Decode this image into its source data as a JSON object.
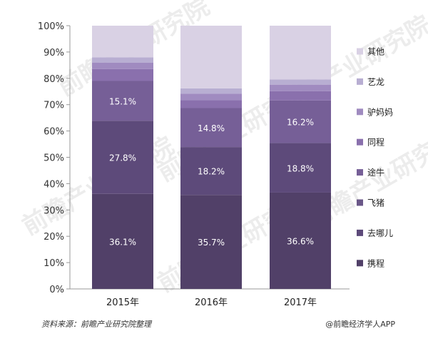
{
  "chart_data": {
    "type": "bar",
    "stacked": true,
    "categories": [
      "2015年",
      "2016年",
      "2017年"
    ],
    "y_ticks": [
      "0%",
      "10%",
      "20%",
      "30%",
      "40%",
      "50%",
      "60%",
      "70%",
      "80%",
      "90%",
      "100%"
    ],
    "ylim": [
      0,
      100
    ],
    "legend_position": "right",
    "grid": false,
    "series": [
      {
        "name": "携程",
        "color": "#514068",
        "values": [
          36.1,
          35.7,
          36.6
        ],
        "labels": [
          "36.1%",
          "35.7%",
          "36.6%"
        ]
      },
      {
        "name": "去哪儿",
        "color": "#5d4a7a",
        "values": [
          27.8,
          18.2,
          18.8
        ],
        "labels": [
          "27.8%",
          "18.2%",
          "18.8%"
        ]
      },
      {
        "name": "飞猪",
        "color": "#6a5788",
        "values": [
          0,
          0,
          0
        ],
        "labels": [
          "",
          "",
          ""
        ]
      },
      {
        "name": "途牛",
        "color": "#765f97",
        "values": [
          15.1,
          14.8,
          16.2
        ],
        "labels": [
          "15.1%",
          "14.8%",
          "16.2%"
        ]
      },
      {
        "name": "同程",
        "color": "#8a70ad",
        "values": [
          4.5,
          3.0,
          3.5
        ],
        "labels": [
          "",
          "",
          ""
        ]
      },
      {
        "name": "驴妈妈",
        "color": "#a08bc0",
        "values": [
          2.5,
          2.5,
          2.5
        ],
        "labels": [
          "",
          "",
          ""
        ]
      },
      {
        "name": "艺龙",
        "color": "#b8aed2",
        "values": [
          2.0,
          2.0,
          2.0
        ],
        "labels": [
          "",
          "",
          ""
        ]
      },
      {
        "name": "其他",
        "color": "#d9d1e4",
        "values": [
          12.0,
          23.8,
          20.4
        ],
        "labels": [
          "",
          "",
          ""
        ]
      }
    ]
  },
  "watermark": "前瞻产业研究院",
  "footer": {
    "source": "资料来源：前瞻产业研究院整理",
    "app": "@前瞻经济学人APP"
  }
}
